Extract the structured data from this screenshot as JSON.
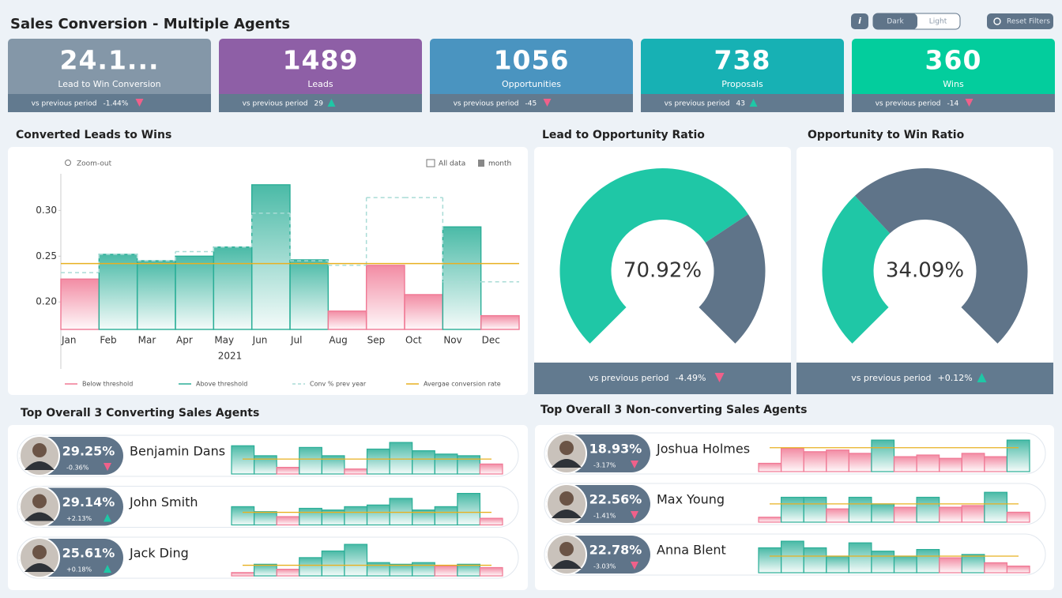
{
  "header": {
    "title": "Sales Conversion - Multiple Agents",
    "info": "i",
    "theme_dark": "Dark",
    "theme_light": "Light",
    "reset": "Reset Filters"
  },
  "kpis": [
    {
      "value": "24.1...",
      "label": "Lead to Win Conversion",
      "compare": "vs previous period",
      "delta": "-1.44%",
      "trend": "down",
      "color": "#8497a8"
    },
    {
      "value": "1489",
      "label": "Leads",
      "compare": "vs previous period",
      "delta": "29",
      "trend": "up",
      "color": "#8e5fa6"
    },
    {
      "value": "1056",
      "label": "Opportunities",
      "compare": "vs previous period",
      "delta": "-45",
      "trend": "down",
      "color": "#4a94c0"
    },
    {
      "value": "738",
      "label": "Proposals",
      "compare": "vs previous period",
      "delta": "43",
      "trend": "up",
      "color": "#17b1b4"
    },
    {
      "value": "360",
      "label": "Wins",
      "compare": "vs previous period",
      "delta": "-14",
      "trend": "down",
      "color": "#03cd9d"
    }
  ],
  "main_chart": {
    "type": "step-bar",
    "title": "Converted Leads to Wins",
    "zoom": "Zoom-out",
    "filter_data": "All data",
    "filter_period": "month",
    "categories": [
      "Jan",
      "Feb",
      "Mar",
      "Apr",
      "May",
      "Jun",
      "Jul",
      "Aug",
      "Sep",
      "Oct",
      "Nov",
      "Dec"
    ],
    "x_label": "2021",
    "values": [
      0.225,
      0.252,
      0.245,
      0.25,
      0.26,
      0.328,
      0.246,
      0.19,
      0.24,
      0.208,
      0.282,
      0.185
    ],
    "prev_year": [
      0.232,
      0.252,
      0.245,
      0.255,
      0.26,
      0.297,
      0.245,
      0.24,
      0.314,
      0.314,
      0.222,
      0.222
    ],
    "average": 0.242,
    "ylim": [
      0.17,
      0.34
    ],
    "yticks": [
      {
        "value": 0.2,
        "label": "0.20"
      },
      {
        "value": 0.25,
        "label": "0.25"
      },
      {
        "value": 0.3,
        "label": "0.30"
      }
    ],
    "legend": [
      "Below threshold",
      "Above threshold",
      "Conv % prev year",
      "Avergae conversion rate"
    ],
    "colors": {
      "above": "#2aae97",
      "below": "#f07894",
      "prev": "#a9dcd6",
      "average": "#e8b020"
    }
  },
  "gauges": [
    {
      "title": "Lead to Opportunity Ratio",
      "value": 70.92,
      "value_label": "70.92%",
      "compare": "vs previous period",
      "delta": "-4.49%",
      "trend": "down"
    },
    {
      "title": "Opportunity to Win Ratio",
      "value": 34.09,
      "value_label": "34.09%",
      "compare": "vs previous period",
      "delta": "+0.12%",
      "trend": "up"
    }
  ],
  "gauge_colors": {
    "fill": "#1fc7a6",
    "rest": "#5f7489"
  },
  "agents": [
    {
      "title": "Top Overall 3 Converting Sales Agents",
      "rows": [
        {
          "name": "Benjamin Dans",
          "value": "29.25%",
          "delta": "-0.36%",
          "trend": "down",
          "spark": [
            0.85,
            0.55,
            0.2,
            0.8,
            0.55,
            0.15,
            0.75,
            0.95,
            0.7,
            0.6,
            0.55,
            0.3
          ],
          "average": 0.45
        },
        {
          "name": "John Smith",
          "value": "29.14%",
          "delta": "+2.13%",
          "trend": "up",
          "spark": [
            0.55,
            0.4,
            0.25,
            0.5,
            0.45,
            0.55,
            0.6,
            0.8,
            0.45,
            0.55,
            0.95,
            0.2
          ],
          "average": 0.38
        },
        {
          "name": "Jack Ding",
          "value": "25.61%",
          "delta": "+0.18%",
          "trend": "up",
          "spark": [
            0.1,
            0.35,
            0.2,
            0.55,
            0.75,
            0.95,
            0.4,
            0.35,
            0.4,
            0.3,
            0.35,
            0.25
          ],
          "average": 0.32
        }
      ]
    },
    {
      "title": "Top Overall 3 Non-converting Sales Agents",
      "rows": [
        {
          "name": "Joshua Holmes",
          "value": "18.93%",
          "delta": "-3.17%",
          "trend": "down",
          "spark": [
            0.25,
            0.7,
            0.6,
            0.65,
            0.55,
            0.95,
            0.45,
            0.5,
            0.4,
            0.55,
            0.45,
            0.95
          ],
          "average": 0.72
        },
        {
          "name": "Max Young",
          "value": "22.56%",
          "delta": "-1.41%",
          "trend": "down",
          "spark": [
            0.15,
            0.75,
            0.75,
            0.4,
            0.75,
            0.55,
            0.45,
            0.75,
            0.45,
            0.5,
            0.9,
            0.3
          ],
          "average": 0.55
        },
        {
          "name": "Anna Blent",
          "value": "22.78%",
          "delta": "-3.03%",
          "trend": "down",
          "spark": [
            0.75,
            0.95,
            0.75,
            0.5,
            0.9,
            0.65,
            0.5,
            0.7,
            0.45,
            0.55,
            0.3,
            0.2
          ],
          "average": 0.5
        }
      ]
    }
  ]
}
